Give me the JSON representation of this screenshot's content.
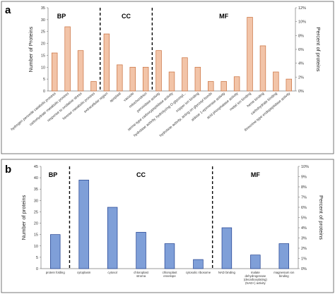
{
  "chart_data": [
    {
      "panel": "a",
      "type": "bar",
      "ylabel": "Number of Proteins",
      "y2label": "Percent of proteins",
      "ylim": [
        0,
        35
      ],
      "y2lim": [
        0,
        12
      ],
      "yticks": [
        "0",
        "5",
        "10",
        "15",
        "20",
        "25",
        "30",
        "35"
      ],
      "y2ticks": [
        "0%",
        "2%",
        "4%",
        "6%",
        "8%",
        "10%",
        "12%"
      ],
      "bar_color": "#f2c4a8",
      "bar_edge": "#c9703e",
      "categories": [
        "hydrogen peroxide catabolic process",
        "carbohydrate metabolic process",
        "response to oxidative stress",
        "hexose metabolic process",
        "extracellular region",
        "apoplast",
        "vacuole",
        "mitochondrion",
        "peroxidase activity",
        "serine-type carboxypeptidase activity",
        "hydrolase activity, hydrolyzing O-glycosyl...",
        "copper ion binding",
        "hydrolase activity, acting on glycosyl bonds",
        "aldose 1-epimerase activity",
        "acid phosphatase activity",
        "metal ion binding",
        "heme binding",
        "carbohydrate binding",
        "threonine-type endopeptidase activity"
      ],
      "values": [
        16,
        27,
        17,
        4,
        24,
        11,
        10,
        10,
        17,
        8,
        14,
        10,
        4,
        4,
        6,
        31,
        19,
        8,
        5
      ],
      "groups": [
        {
          "label": "BP",
          "count": 4
        },
        {
          "label": "CC",
          "count": 4
        },
        {
          "label": "MF",
          "count": 11
        }
      ]
    },
    {
      "panel": "b",
      "type": "bar",
      "ylabel": "Number of proteins",
      "y2label": "Percent of proteins",
      "ylim": [
        0,
        45
      ],
      "y2lim": [
        0,
        10
      ],
      "yticks": [
        "0",
        "5",
        "10",
        "15",
        "20",
        "25",
        "30",
        "35",
        "40",
        "45"
      ],
      "y2ticks": [
        "0%",
        "1%",
        "2%",
        "3%",
        "4%",
        "5%",
        "6%",
        "7%",
        "8%",
        "9%",
        "10%"
      ],
      "bar_color": "#7f9fd8",
      "bar_edge": "#1f3f8f",
      "categories": [
        "protein folding",
        "cytoplasm",
        "cytosol",
        "chloroplast stroma",
        "chloroplast envelope",
        "cytosolic ribosome",
        "NAD binding",
        "malate dehydrogenase (decarboxylating) (NAD+) activity",
        "magnesium ion binding"
      ],
      "values": [
        15,
        39,
        27,
        16,
        11,
        4,
        18,
        6,
        11
      ],
      "groups": [
        {
          "label": "BP",
          "count": 1
        },
        {
          "label": "CC",
          "count": 5
        },
        {
          "label": "MF",
          "count": 3
        }
      ]
    }
  ]
}
